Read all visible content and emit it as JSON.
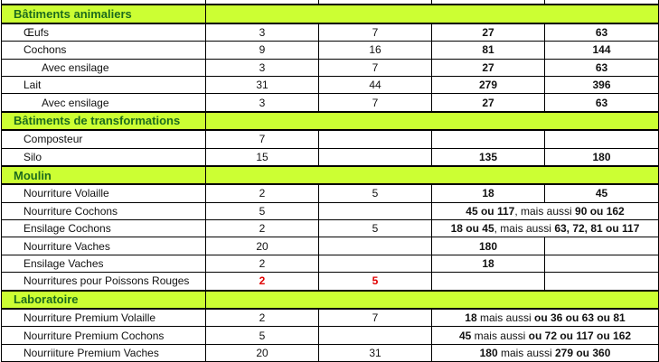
{
  "colors": {
    "section_bg": "#ccff33",
    "section_text": "#1d6b1d",
    "highlight": "#e00000"
  },
  "sections": [
    {
      "title": "Bâtiments animaliers",
      "rows": [
        {
          "label": "Œufs",
          "c1": "3",
          "c2": "7",
          "c3": [
            {
              "t": "27",
              "b": true
            }
          ],
          "c4": [
            {
              "t": "63",
              "b": true
            }
          ]
        },
        {
          "label": "Cochons",
          "c1": "9",
          "c2": "16",
          "c3": [
            {
              "t": "81",
              "b": true
            }
          ],
          "c4": [
            {
              "t": "144",
              "b": true
            }
          ]
        },
        {
          "label": "Avec ensilage",
          "indent": true,
          "c1": "3",
          "c2": "7",
          "c3": [
            {
              "t": "27",
              "b": true
            }
          ],
          "c4": [
            {
              "t": "63",
              "b": true
            }
          ]
        },
        {
          "label": "Lait",
          "c1": "31",
          "c2": "44",
          "c3": [
            {
              "t": "279",
              "b": true
            }
          ],
          "c4": [
            {
              "t": "396",
              "b": true
            }
          ]
        },
        {
          "label": "Avec ensilage",
          "indent": true,
          "c1": "3",
          "c2": "7",
          "c3": [
            {
              "t": "27",
              "b": true
            }
          ],
          "c4": [
            {
              "t": "63",
              "b": true
            }
          ]
        }
      ]
    },
    {
      "title": "Bâtiments de transformations",
      "rows": [
        {
          "label": "Composteur",
          "c1": "7",
          "c2": "",
          "c3": [],
          "c4": []
        },
        {
          "label": "Silo",
          "c1": "15",
          "c2": "",
          "c3": [
            {
              "t": "135",
              "b": true
            }
          ],
          "c4": [
            {
              "t": "180",
              "b": true
            }
          ]
        }
      ]
    },
    {
      "title": "Moulin",
      "rows": [
        {
          "label": "Nourriture Volaille",
          "c1": "2",
          "c2": "5",
          "c3": [
            {
              "t": "18",
              "b": true
            }
          ],
          "c4": [
            {
              "t": "45",
              "b": true
            }
          ]
        },
        {
          "label": "Nourriture Cochons",
          "c1": "5",
          "c2": "",
          "merged": [
            {
              "t": "45 ou 117",
              "b": true
            },
            {
              "t": ", mais aussi ",
              "b": false
            },
            {
              "t": "90 ou 162",
              "b": true
            }
          ]
        },
        {
          "label": "Ensilage Cochons",
          "c1": "2",
          "c2": "5",
          "merged": [
            {
              "t": "18 ou 45",
              "b": true
            },
            {
              "t": ", mais aussi ",
              "b": false
            },
            {
              "t": "63, 72, 81 ou 117",
              "b": true
            }
          ]
        },
        {
          "label": "Nourriture Vaches",
          "c1": "20",
          "c2": "",
          "c3": [
            {
              "t": "180",
              "b": true
            }
          ],
          "c4": []
        },
        {
          "label": "Ensilage Vaches",
          "c1": "2",
          "c2": "",
          "c3": [
            {
              "t": "18",
              "b": true
            }
          ],
          "c4": []
        },
        {
          "label": "Nourritures pour Poissons Rouges",
          "c1": "2",
          "c2": "5",
          "red": true,
          "c3": [],
          "c4": []
        }
      ]
    },
    {
      "title": "Laboratoire",
      "rows": [
        {
          "label": "Nourriture Premium Volaille",
          "c1": "2",
          "c2": "7",
          "merged": [
            {
              "t": "18",
              "b": true
            },
            {
              "t": " mais aussi ",
              "b": false
            },
            {
              "t": "ou 36 ou 63 ou 81",
              "b": true
            }
          ]
        },
        {
          "label": "Nourriture Premium Cochons",
          "c1": "5",
          "c2": "",
          "merged": [
            {
              "t": "45",
              "b": true
            },
            {
              "t": " mais aussi ",
              "b": false
            },
            {
              "t": "ou 72 ou 117 ou 162",
              "b": true
            }
          ]
        },
        {
          "label": "Nourriiture Premium Vaches",
          "c1": "20",
          "c2": "31",
          "merged": [
            {
              "t": "180",
              "b": true
            },
            {
              "t": " mais aussi ",
              "b": false
            },
            {
              "t": "279 ou 360",
              "b": true
            }
          ]
        }
      ]
    }
  ]
}
